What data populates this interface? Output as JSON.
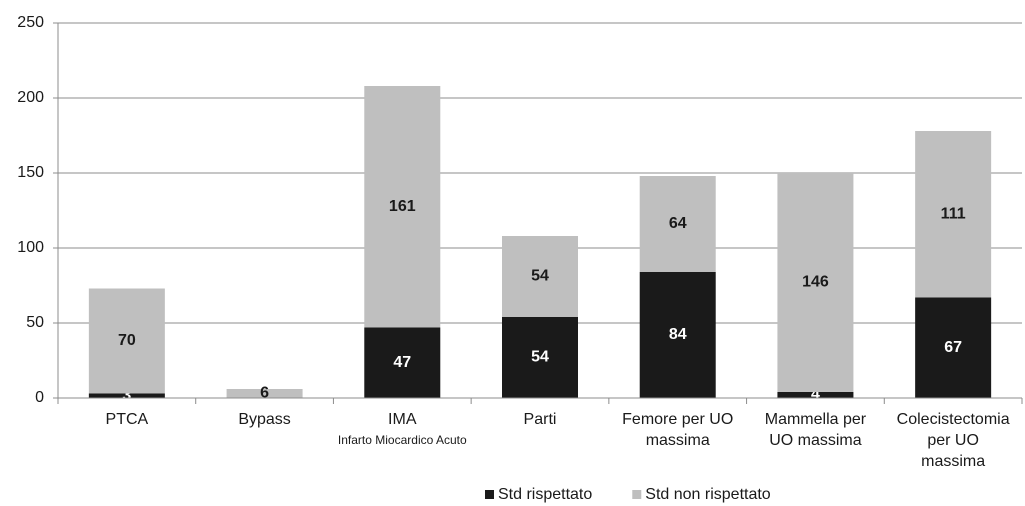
{
  "chart_data": {
    "type": "stacked-bar",
    "categories": [
      [
        "PTCA"
      ],
      [
        "Bypass"
      ],
      [
        "IMA"
      ],
      [
        "Parti"
      ],
      [
        "Femore per UO",
        "massima"
      ],
      [
        "Mammella per",
        "UO massima"
      ],
      [
        "Colecistectomia",
        "per UO",
        "massima"
      ]
    ],
    "category_subtitles": [
      null,
      null,
      "Infarto Miocardico Acuto",
      null,
      null,
      null,
      null
    ],
    "series": [
      {
        "name": "Std rispettato",
        "color": "#1a1a1a",
        "label_color": "#ffffff",
        "values": [
          3,
          null,
          47,
          54,
          84,
          4,
          67
        ]
      },
      {
        "name": "Std non rispettato",
        "color": "#bfbfbf",
        "label_color": "#1a1a1a",
        "values": [
          70,
          6,
          161,
          54,
          64,
          146,
          111
        ]
      }
    ],
    "ylim": [
      0,
      250
    ],
    "yticks": [
      0,
      50,
      100,
      150,
      200,
      250
    ],
    "grid": true,
    "legend": "bottom"
  }
}
